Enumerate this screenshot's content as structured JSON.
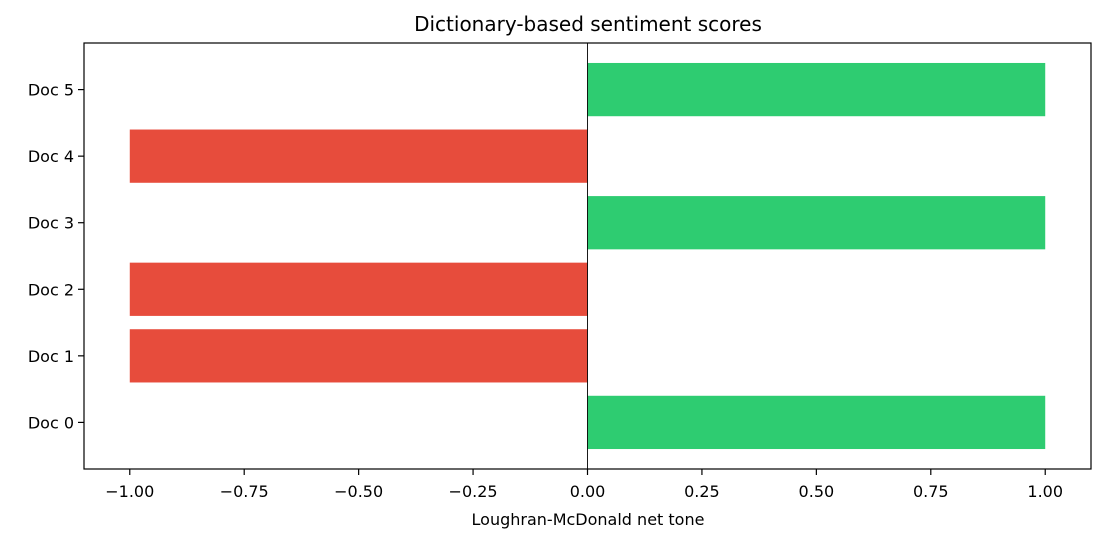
{
  "chart_data": {
    "type": "bar",
    "orientation": "horizontal",
    "title": "Dictionary-based sentiment scores",
    "xlabel": "Loughran-McDonald net tone",
    "ylabel": "",
    "categories": [
      "Doc 0",
      "Doc 1",
      "Doc 2",
      "Doc 3",
      "Doc 4",
      "Doc 5"
    ],
    "values": [
      1.0,
      -1.0,
      -1.0,
      1.0,
      -1.0,
      1.0
    ],
    "xlim": [
      -1.1,
      1.1
    ],
    "xticks": [
      -1.0,
      -0.75,
      -0.5,
      -0.25,
      0.0,
      0.25,
      0.5,
      0.75,
      1.0
    ],
    "xtick_labels": [
      "−1.00",
      "−0.75",
      "−0.50",
      "−0.25",
      "0.00",
      "0.25",
      "0.50",
      "0.75",
      "1.00"
    ],
    "grid": false,
    "reference_line": 0,
    "colors": {
      "positive": "#2ecc71",
      "negative": "#e74c3c"
    }
  }
}
